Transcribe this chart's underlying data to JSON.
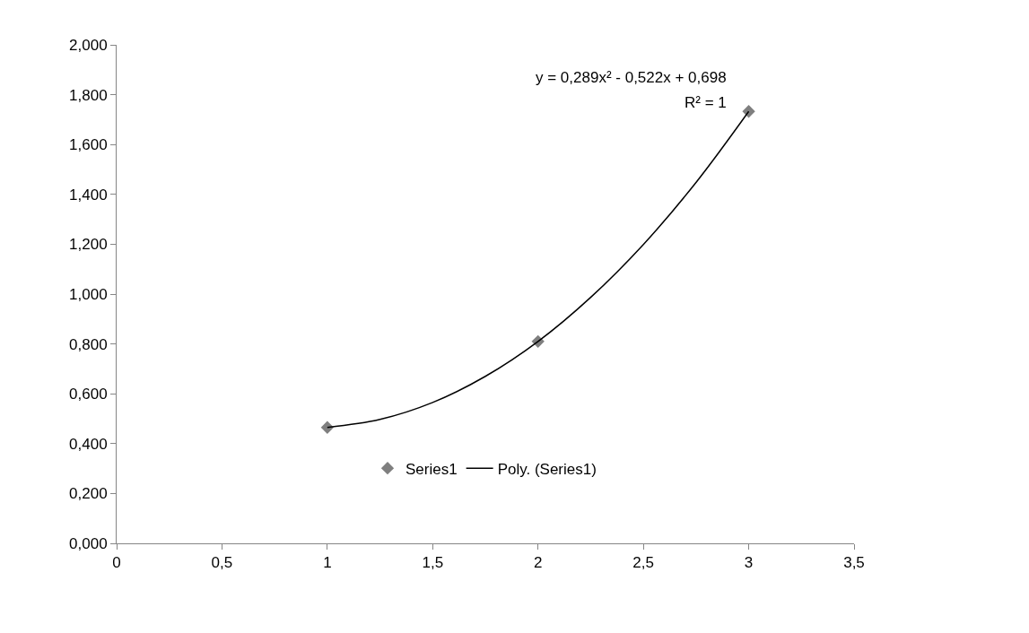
{
  "chart_data": {
    "type": "scatter",
    "annotations": [
      "y = 0,289x² - 0,522x + 0,698",
      "R² = 1"
    ],
    "series": [
      {
        "name": "Series1",
        "color": "#7f7f7f",
        "marker": "diamond",
        "x": [
          1,
          2,
          3
        ],
        "values": [
          0.465,
          0.81,
          1.733
        ]
      },
      {
        "name": "Poly. (Series1)",
        "type": "line",
        "color": "#000000",
        "marker": "none",
        "line_style": "solid",
        "x": [
          1,
          1.25,
          1.5,
          1.75,
          2,
          2.25,
          2.5,
          2.75,
          3
        ],
        "values": [
          0.465,
          0.497,
          0.565,
          0.67,
          0.81,
          0.987,
          1.199,
          1.448,
          1.733
        ]
      }
    ],
    "xlim": [
      0,
      3.5
    ],
    "xticks": [
      0,
      {
        "value": 0.5,
        "label": "0,5"
      },
      1,
      {
        "value": 1.5,
        "label": "1,5"
      },
      2,
      {
        "value": 2.5,
        "label": "2,5"
      },
      3,
      {
        "value": 3.5,
        "label": "3,5"
      }
    ],
    "ylim": [
      0,
      2
    ],
    "yticks": [
      {
        "value": 0,
        "label": "0,000"
      },
      {
        "value": 0.2,
        "label": "0,200"
      },
      {
        "value": 0.4,
        "label": "0,400"
      },
      {
        "value": 0.6,
        "label": "0,600"
      },
      {
        "value": 0.8,
        "label": "0,800"
      },
      {
        "value": 1.0,
        "label": "1,000"
      },
      {
        "value": 1.2,
        "label": "1,200"
      },
      {
        "value": 1.4,
        "label": "1,400"
      },
      {
        "value": 1.6,
        "label": "1,600"
      },
      {
        "value": 1.8,
        "label": "1,800"
      },
      {
        "value": 2.0,
        "label": "2,000"
      }
    ],
    "legend": "bottom"
  }
}
